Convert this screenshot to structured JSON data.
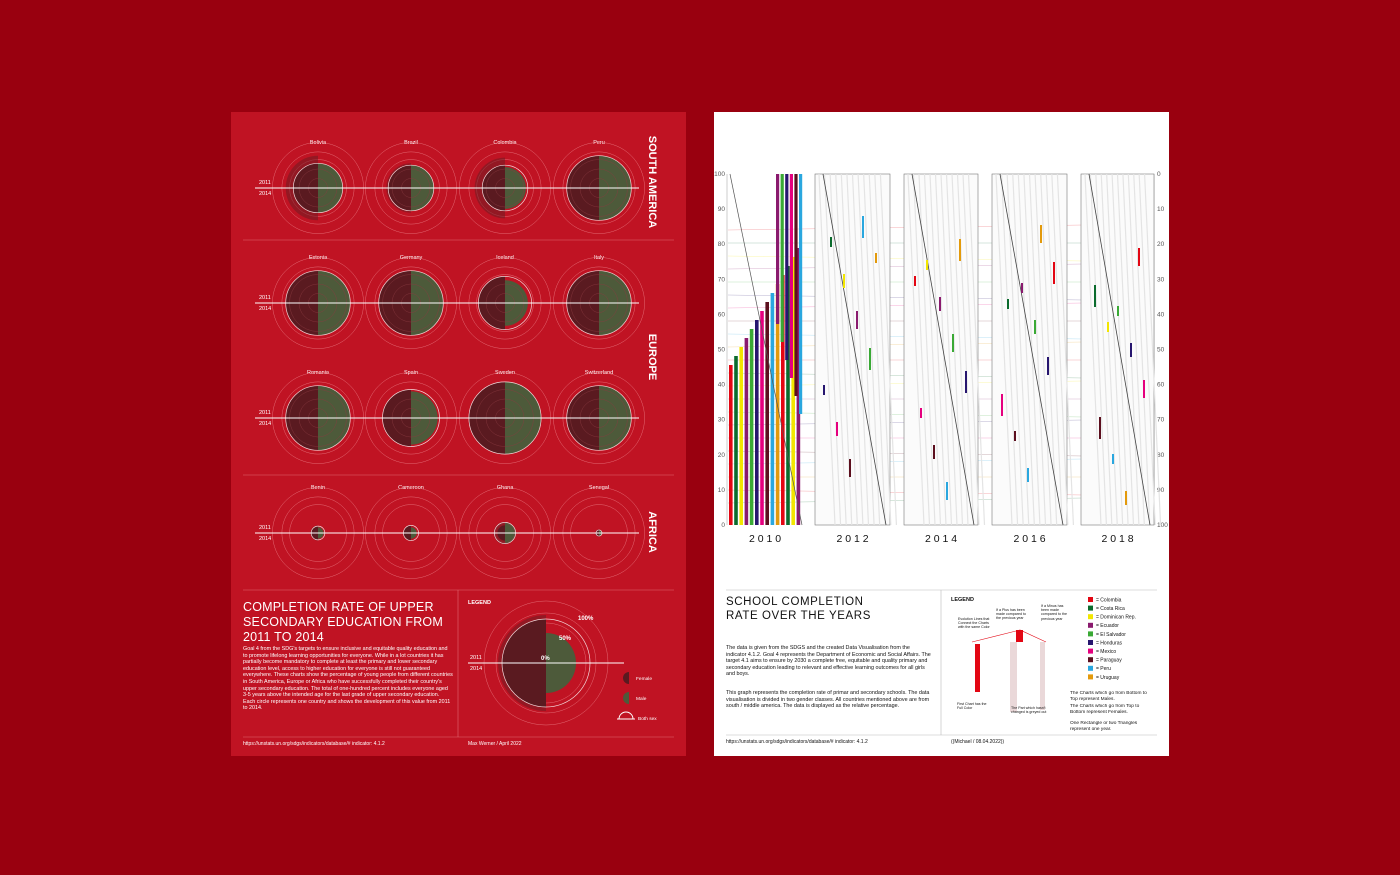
{
  "left_poster": {
    "regions": [
      {
        "name": "SOUTH AMERICA",
        "countries": [
          "Bolivia",
          "Brazil",
          "Colombia",
          "Peru"
        ],
        "female": [
          0.65,
          0.6,
          0.6,
          0.85
        ],
        "male": [
          0.65,
          0.6,
          0.55,
          0.85
        ],
        "overlay": [
          0.85,
          0.65,
          0.8,
          0.6
        ]
      },
      {
        "name": "EUROPE",
        "countries": [
          "Estonia",
          "Germany",
          "Iceland",
          "Italy"
        ],
        "female": [
          0.85,
          0.85,
          0.7,
          0.85
        ],
        "male": [
          0.85,
          0.85,
          0.6,
          0.85
        ],
        "overlay": [
          0.85,
          0.85,
          0.7,
          0.85
        ]
      },
      {
        "name": "",
        "countries": [
          "Romania",
          "Spain",
          "Sweden",
          "Switzerland"
        ],
        "female": [
          0.85,
          0.75,
          0.95,
          0.85
        ],
        "male": [
          0.85,
          0.7,
          0.95,
          0.85
        ],
        "overlay": [
          0.85,
          0.75,
          0.95,
          0.85
        ]
      },
      {
        "name": "AFRICA",
        "countries": [
          "Benin",
          "Cameroon",
          "Ghana",
          "Senegal"
        ],
        "female": [
          0.18,
          0.2,
          0.2,
          0.08
        ],
        "male": [
          0.15,
          0.15,
          0.28,
          0.08
        ],
        "overlay": [
          0.2,
          0.2,
          0.3,
          0.1
        ]
      }
    ],
    "year_top": "2011",
    "year_bottom": "2014",
    "title": "COMPLETION RATE OF UPPER SECONDARY EDUCATION FROM 2011 TO 2014",
    "body": "Goal 4 from the SDG's targets to ensure inclusive and equitable quality education and to promote lifelong learning opportunities for everyone. While in a lot countries it has partially become mandatory to complete at least the primary and lower secondary education level, access to higher education for everyone is still not guaranteed everywhere. These charts show the percentage of young people from different countries in South America, Europe or Africa who have successfully completed their country's upper secondary education. The total of one-hundred percent includes everyone aged 3-5 years above the intended age for the last grade of upper secondary education. Each circle represents one country and shows the development of this value from 2011 to 2014.",
    "legend_title": "LEGEND",
    "legend_100": "100%",
    "legend_50": "50%",
    "legend_0": "0%",
    "legend_female": "Female",
    "legend_male": "Male",
    "legend_both": "Both sex",
    "source": "https://unstats.un.org/sdgs/indicators/database/# indicator: 4.1.2",
    "author": "Max Werner / April 2022"
  },
  "right_poster": {
    "axis_left": [
      "100",
      "90",
      "80",
      "70",
      "60",
      "50",
      "40",
      "30",
      "20",
      "10",
      "0"
    ],
    "axis_right": [
      "0",
      "10",
      "20",
      "30",
      "40",
      "50",
      "60",
      "70",
      "80",
      "90",
      "100"
    ],
    "years": [
      "2 0 1 0",
      "2 0 1 2",
      "2 0 1 4",
      "2 0 1 6",
      "2 0 1 8"
    ],
    "title_line1": "SCHOOL COMPLETION",
    "title_line2": "RATE OVER THE YEARS",
    "para1": "The data is given from the SDGS and the created Data Visualisation from the indicator 4.1.2. Goal 4 represents the Department of Economic and Social Affairs. The target 4.1 aims to ensure by 2030 a complete free, equitable and quality primary and secondary education leading to relevant and effective learning outcomes for all girls and boys.",
    "para2": "This graph represents the completion rate of primar and secondary schools. The data visualisation is divided in two gender classes. All countries mentioned above are from south / middle america. The data is displayed as the relative percentage.",
    "legend_title": "LEGEND",
    "note_evolution": "Evolution Lines that Connect the Charts with the same Color",
    "note_plus": "If a Plus has been made compared to the previous year",
    "note_minus": "If a Minus has been made compared to the previous year",
    "note_first": "First Chart has the Full Color",
    "note_grey": "The Part which hasn't changed is greyed out",
    "countries": [
      {
        "name": "= Colombia",
        "color": "#e30613"
      },
      {
        "name": "= Costa Rica",
        "color": "#0b6b2d"
      },
      {
        "name": "= Dominican Rep.",
        "color": "#f2e600"
      },
      {
        "name": "= Ecuador",
        "color": "#8a1a6e"
      },
      {
        "name": "= El Salvador",
        "color": "#3aa935"
      },
      {
        "name": "= Honduras",
        "color": "#27166f"
      },
      {
        "name": "= Mexico",
        "color": "#e5007e"
      },
      {
        "name": "= Paraguay",
        "color": "#5c0f1e"
      },
      {
        "name": "= Peru",
        "color": "#2aa7df"
      },
      {
        "name": "= Uruguay",
        "color": "#e39a0c"
      }
    ],
    "note_males": "The Charts which go from Bottom to Top represent Males.",
    "note_females": "The Charts which go from Top to Bottom represent Females.",
    "note_year": "One Rectangle or two Triangles represent one year.",
    "source": "https://unstats.un.org/sdgs/indicators/database/# indicator: 4.1.2",
    "author": "((Michael / 08.04.2022))"
  }
}
